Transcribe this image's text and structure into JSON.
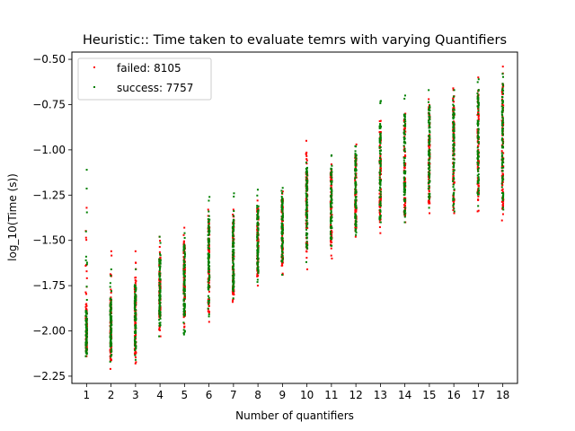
{
  "chart_data": {
    "type": "scatter",
    "title": "Heuristic:: Time taken to evaluate temrs with varying Quantifiers",
    "xlabel": "Number of quantifiers",
    "ylabel": "log_10(Time (s))",
    "xlim": [
      0.4,
      18.6
    ],
    "ylim": [
      -2.29,
      -0.46
    ],
    "xticks": [
      1,
      2,
      3,
      4,
      5,
      6,
      7,
      8,
      9,
      10,
      11,
      12,
      13,
      14,
      15,
      16,
      17,
      18
    ],
    "yticks": [
      -2.25,
      -2.0,
      -1.75,
      -1.5,
      -1.25,
      -1.0,
      -0.75,
      -0.5
    ],
    "ytick_labels": [
      "−2.25",
      "−2.00",
      "−1.75",
      "−1.50",
      "−1.25",
      "−1.00",
      "−0.75",
      "−0.50"
    ],
    "grid": false,
    "legend_position": "top-left",
    "series": [
      {
        "name": "failed: 8105",
        "color": "#ff0000",
        "columns": [
          {
            "x": 1,
            "y_min": -2.14,
            "y_max": -1.32,
            "core_min": -2.12,
            "core_max": -1.85
          },
          {
            "x": 2,
            "y_min": -2.21,
            "y_max": -1.56,
            "core_min": -2.17,
            "core_max": -1.8
          },
          {
            "x": 3,
            "y_min": -2.18,
            "y_max": -1.56,
            "core_min": -2.13,
            "core_max": -1.72
          },
          {
            "x": 4,
            "y_min": -2.03,
            "y_max": -1.48,
            "core_min": -2.0,
            "core_max": -1.58
          },
          {
            "x": 5,
            "y_min": -1.98,
            "y_max": -1.43,
            "core_min": -1.93,
            "core_max": -1.5
          },
          {
            "x": 6,
            "y_min": -1.95,
            "y_max": -1.33,
            "core_min": -1.9,
            "core_max": -1.38
          },
          {
            "x": 7,
            "y_min": -1.84,
            "y_max": -1.33,
            "core_min": -1.8,
            "core_max": -1.38
          },
          {
            "x": 8,
            "y_min": -1.75,
            "y_max": -1.28,
            "core_min": -1.7,
            "core_max": -1.32
          },
          {
            "x": 9,
            "y_min": -1.69,
            "y_max": -1.23,
            "core_min": -1.64,
            "core_max": -1.27
          },
          {
            "x": 10,
            "y_min": -1.66,
            "y_max": -0.95,
            "core_min": -1.57,
            "core_max": -1.12
          },
          {
            "x": 11,
            "y_min": -1.6,
            "y_max": -1.08,
            "core_min": -1.53,
            "core_max": -1.12
          },
          {
            "x": 12,
            "y_min": -1.48,
            "y_max": -0.97,
            "core_min": -1.45,
            "core_max": -1.02
          },
          {
            "x": 13,
            "y_min": -1.46,
            "y_max": -0.84,
            "core_min": -1.4,
            "core_max": -0.9
          },
          {
            "x": 14,
            "y_min": -1.4,
            "y_max": -0.8,
            "core_min": -1.37,
            "core_max": -0.83
          },
          {
            "x": 15,
            "y_min": -1.35,
            "y_max": -0.72,
            "core_min": -1.3,
            "core_max": -0.76
          },
          {
            "x": 16,
            "y_min": -1.35,
            "y_max": -0.66,
            "core_min": -1.3,
            "core_max": -0.7
          },
          {
            "x": 17,
            "y_min": -1.34,
            "y_max": -0.6,
            "core_min": -1.28,
            "core_max": -0.66
          },
          {
            "x": 18,
            "y_min": -1.39,
            "y_max": -0.54,
            "core_min": -1.35,
            "core_max": -0.62
          }
        ]
      },
      {
        "name": "success: 7757",
        "color": "#008000",
        "columns": [
          {
            "x": 1,
            "y_min": -2.14,
            "y_max": -1.11,
            "core_min": -2.13,
            "core_max": -1.88
          },
          {
            "x": 2,
            "y_min": -2.17,
            "y_max": -1.66,
            "core_min": -2.14,
            "core_max": -1.82
          },
          {
            "x": 3,
            "y_min": -2.16,
            "y_max": -1.66,
            "core_min": -2.1,
            "core_max": -1.74
          },
          {
            "x": 4,
            "y_min": -2.03,
            "y_max": -1.48,
            "core_min": -1.98,
            "core_max": -1.6
          },
          {
            "x": 5,
            "y_min": -2.02,
            "y_max": -1.46,
            "core_min": -1.92,
            "core_max": -1.52
          },
          {
            "x": 6,
            "y_min": -1.92,
            "y_max": -1.26,
            "core_min": -1.88,
            "core_max": -1.36
          },
          {
            "x": 7,
            "y_min": -1.82,
            "y_max": -1.24,
            "core_min": -1.78,
            "core_max": -1.36
          },
          {
            "x": 8,
            "y_min": -1.73,
            "y_max": -1.22,
            "core_min": -1.68,
            "core_max": -1.3
          },
          {
            "x": 9,
            "y_min": -1.69,
            "y_max": -1.21,
            "core_min": -1.62,
            "core_max": -1.25
          },
          {
            "x": 10,
            "y_min": -1.62,
            "y_max": -1.07,
            "core_min": -1.55,
            "core_max": -1.1
          },
          {
            "x": 11,
            "y_min": -1.53,
            "y_max": -1.03,
            "core_min": -1.5,
            "core_max": -1.1
          },
          {
            "x": 12,
            "y_min": -1.47,
            "y_max": -0.98,
            "core_min": -1.44,
            "core_max": -1.0
          },
          {
            "x": 13,
            "y_min": -1.4,
            "y_max": -0.73,
            "core_min": -1.38,
            "core_max": -0.86
          },
          {
            "x": 14,
            "y_min": -1.4,
            "y_max": -0.7,
            "core_min": -1.35,
            "core_max": -0.8
          },
          {
            "x": 15,
            "y_min": -1.32,
            "y_max": -0.67,
            "core_min": -1.28,
            "core_max": -0.74
          },
          {
            "x": 16,
            "y_min": -1.34,
            "y_max": -0.67,
            "core_min": -1.28,
            "core_max": -0.7
          },
          {
            "x": 17,
            "y_min": -1.31,
            "y_max": -0.61,
            "core_min": -1.26,
            "core_max": -0.66
          },
          {
            "x": 18,
            "y_min": -1.33,
            "y_max": -0.58,
            "core_min": -1.28,
            "core_max": -0.62
          }
        ]
      }
    ]
  }
}
